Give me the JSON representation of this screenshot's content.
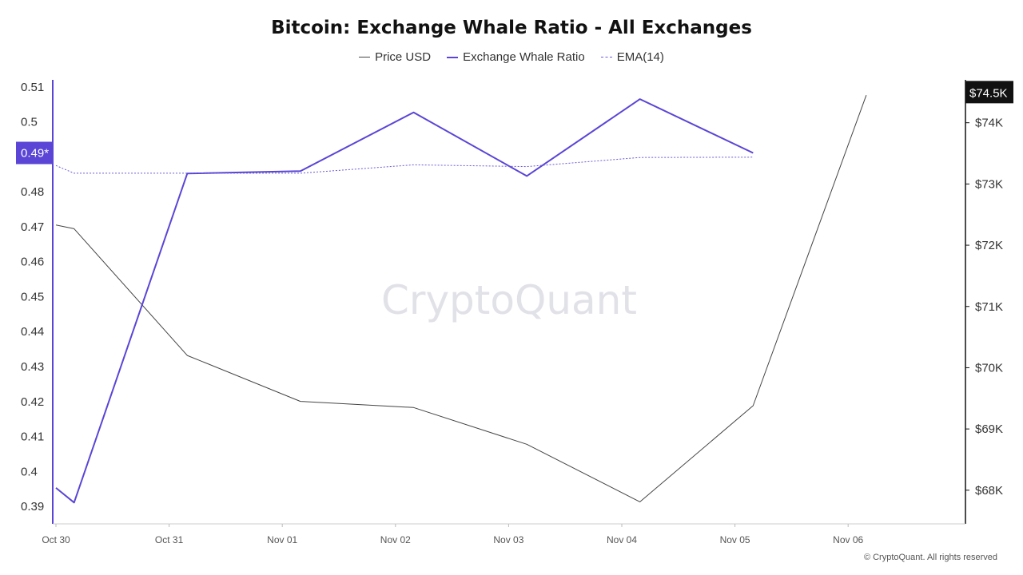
{
  "chart_data": {
    "type": "line",
    "title": "Bitcoin: Exchange Whale Ratio - All Exchanges",
    "watermark": "CryptoQuant",
    "footer": "© CryptoQuant. All rights reserved",
    "x_ticks": [
      "Oct 30",
      "Oct 31",
      "Nov 01",
      "Nov 02",
      "Nov 03",
      "Nov 04",
      "Nov 05",
      "Nov 06"
    ],
    "x_range": [
      0,
      8.0
    ],
    "y_left": {
      "ticks": [
        "0.51",
        "0.5",
        "0.49*",
        "0.48",
        "0.47",
        "0.46",
        "0.45",
        "0.44",
        "0.43",
        "0.42",
        "0.41",
        "0.4",
        "0.39"
      ],
      "range": [
        0.385,
        0.512
      ],
      "marker_label": "0.49*",
      "marker_value": 0.4911,
      "color": "#5a45d6"
    },
    "y_right": {
      "ticks": [
        "$74K",
        "$73K",
        "$72K",
        "$71K",
        "$70K",
        "$69K",
        "$68K"
      ],
      "tick_values": [
        74000,
        73000,
        72000,
        71000,
        70000,
        69000,
        68000
      ],
      "range": [
        67450,
        74700
      ],
      "marker_label": "$74.5K",
      "marker_value": 74500
    },
    "series": [
      {
        "name": "Price USD",
        "axis": "right",
        "color": "#444444",
        "width": 1,
        "dash": "",
        "points": [
          [
            0,
            72330
          ],
          [
            0.16,
            72270
          ],
          [
            1.16,
            70200
          ],
          [
            2.16,
            69450
          ],
          [
            3.16,
            69350
          ],
          [
            4.16,
            68750
          ],
          [
            5.16,
            67810
          ],
          [
            6.16,
            69380
          ],
          [
            7.16,
            74450
          ]
        ]
      },
      {
        "name": "Exchange Whale Ratio",
        "axis": "left",
        "color": "#5a45d6",
        "width": 2,
        "dash": "",
        "points": [
          [
            0,
            0.3953
          ],
          [
            0.16,
            0.3911
          ],
          [
            1.16,
            0.4852
          ],
          [
            2.16,
            0.4859
          ],
          [
            3.16,
            0.5027
          ],
          [
            4.16,
            0.4845
          ],
          [
            5.16,
            0.5065
          ],
          [
            6.16,
            0.4911
          ]
        ]
      },
      {
        "name": "EMA(14)",
        "axis": "left",
        "color": "#6a5ad8",
        "width": 1,
        "dash": "2,2",
        "points": [
          [
            0,
            0.4875
          ],
          [
            0.16,
            0.4853
          ],
          [
            1.16,
            0.4853
          ],
          [
            2.16,
            0.4853
          ],
          [
            3.16,
            0.4877
          ],
          [
            4.16,
            0.4872
          ],
          [
            5.16,
            0.4898
          ],
          [
            6.16,
            0.4899
          ]
        ]
      }
    ]
  }
}
